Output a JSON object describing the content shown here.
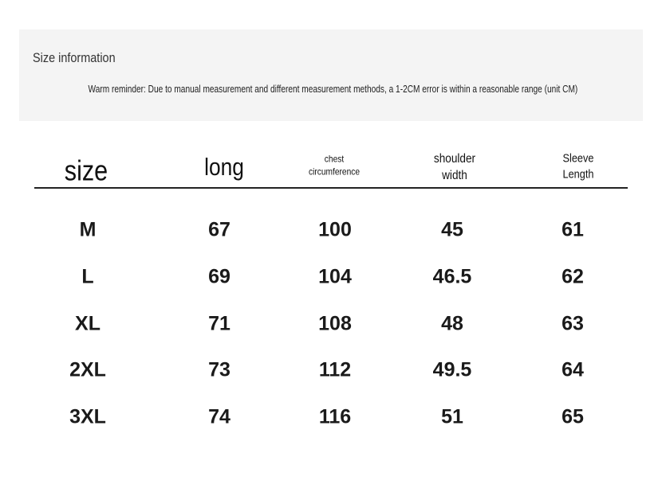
{
  "header": {
    "title": "Size information",
    "reminder": "Warm reminder: Due to manual measurement and different measurement methods, a 1-2CM error is within a reasonable range (unit CM)"
  },
  "table": {
    "columns": [
      "size",
      "long",
      "chest circumference",
      "shoulder width",
      "Sleeve Length"
    ],
    "rows": [
      [
        "M",
        67,
        100,
        45,
        61
      ],
      [
        "L",
        69,
        104,
        46.5,
        62
      ],
      [
        "XL",
        71,
        108,
        48,
        63
      ],
      [
        "2XL",
        73,
        112,
        49.5,
        64
      ],
      [
        "3XL",
        74,
        116,
        51,
        65
      ]
    ]
  }
}
